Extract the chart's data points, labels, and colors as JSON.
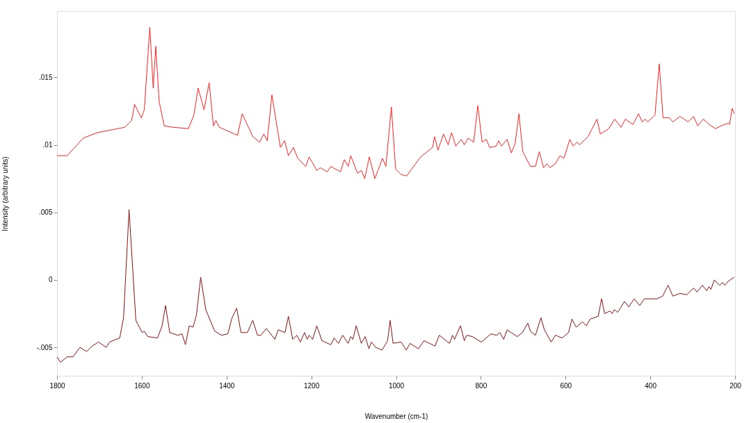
{
  "chart_data": {
    "type": "line",
    "xlabel": "Wavenumber (cm-1)",
    "ylabel": "Intensity (arbitrary units)",
    "xlim": [
      1800,
      200
    ],
    "xticks": [
      1800,
      1600,
      1400,
      1200,
      1000,
      800,
      600,
      400,
      200
    ],
    "ylim": [
      -0.0071,
      0.0199
    ],
    "yticks": [
      {
        "value": -0.005,
        "label": "-.005"
      },
      {
        "value": 0,
        "label": "0"
      },
      {
        "value": 0.005,
        "label": ".005"
      },
      {
        "value": 0.01,
        "label": ".01"
      },
      {
        "value": 0.015,
        "label": ".015"
      }
    ],
    "grid": false,
    "legend": false,
    "marker": "none",
    "line_style": "solid",
    "series": [
      {
        "color": "#ff2020",
        "x": [
          1800,
          1776,
          1738,
          1705,
          1640,
          1624,
          1617,
          1601,
          1594,
          1581,
          1573,
          1567,
          1559,
          1547,
          1526,
          1490,
          1477,
          1467,
          1453,
          1441,
          1431,
          1425,
          1417,
          1374,
          1363,
          1338,
          1322,
          1312,
          1304,
          1293,
          1273,
          1263,
          1254,
          1242,
          1232,
          1213,
          1205,
          1187,
          1179,
          1162,
          1154,
          1131,
          1122,
          1113,
          1107,
          1091,
          1082,
          1074,
          1063,
          1050,
          1032,
          1024,
          1011,
          1001,
          988,
          975,
          942,
          914,
          909,
          901,
          888,
          877,
          869,
          859,
          846,
          839,
          830,
          817,
          807,
          797,
          787,
          779,
          764,
          758,
          751,
          738,
          728,
          719,
          710,
          701,
          683,
          671,
          662,
          652,
          644,
          637,
          624,
          613,
          604,
          590,
          582,
          573,
          567,
          547,
          526,
          518,
          498,
          484,
          469,
          459,
          441,
          428,
          419,
          412,
          406,
          389,
          379,
          370,
          355,
          347,
          330,
          311,
          298,
          288,
          275,
          257,
          246,
          233,
          216,
          213,
          207,
          202
        ],
        "values": [
          0.0092,
          0.0092,
          0.0105,
          0.0109,
          0.0113,
          0.0118,
          0.013,
          0.012,
          0.0126,
          0.0187,
          0.0142,
          0.0173,
          0.0132,
          0.0114,
          0.0113,
          0.0112,
          0.0122,
          0.0142,
          0.0126,
          0.0146,
          0.0114,
          0.0118,
          0.0113,
          0.0107,
          0.0123,
          0.0106,
          0.0102,
          0.0108,
          0.0103,
          0.0137,
          0.0098,
          0.0103,
          0.0092,
          0.0098,
          0.009,
          0.0084,
          0.0091,
          0.0081,
          0.0083,
          0.008,
          0.0084,
          0.008,
          0.0089,
          0.0084,
          0.0092,
          0.0079,
          0.0081,
          0.0075,
          0.0091,
          0.0075,
          0.009,
          0.0084,
          0.0128,
          0.0082,
          0.0078,
          0.0077,
          0.0091,
          0.0098,
          0.0106,
          0.0096,
          0.0108,
          0.01,
          0.0109,
          0.0099,
          0.0104,
          0.01,
          0.0105,
          0.0102,
          0.0129,
          0.0102,
          0.0104,
          0.0098,
          0.0099,
          0.0103,
          0.0099,
          0.0104,
          0.0094,
          0.0101,
          0.0123,
          0.0095,
          0.0084,
          0.0084,
          0.0095,
          0.0083,
          0.0086,
          0.0083,
          0.0086,
          0.0092,
          0.009,
          0.0104,
          0.0099,
          0.0102,
          0.01,
          0.0106,
          0.0119,
          0.0108,
          0.0112,
          0.0119,
          0.0113,
          0.0119,
          0.0115,
          0.0123,
          0.0117,
          0.0119,
          0.0117,
          0.0122,
          0.016,
          0.012,
          0.012,
          0.0117,
          0.0121,
          0.0117,
          0.0121,
          0.0114,
          0.0119,
          0.0114,
          0.0112,
          0.0114,
          0.0116,
          0.0115,
          0.0127,
          0.0123
        ]
      },
      {
        "color": "#8b1010",
        "x": [
          1800,
          1792,
          1776,
          1762,
          1746,
          1730,
          1717,
          1702,
          1684,
          1676,
          1652,
          1643,
          1630,
          1614,
          1599,
          1594,
          1586,
          1563,
          1552,
          1544,
          1534,
          1515,
          1505,
          1497,
          1488,
          1479,
          1471,
          1461,
          1449,
          1428,
          1412,
          1397,
          1387,
          1376,
          1366,
          1351,
          1338,
          1327,
          1319,
          1306,
          1286,
          1278,
          1262,
          1254,
          1244,
          1234,
          1226,
          1216,
          1210,
          1205,
          1197,
          1187,
          1175,
          1154,
          1146,
          1136,
          1126,
          1113,
          1107,
          1102,
          1094,
          1082,
          1073,
          1064,
          1058,
          1048,
          1033,
          1020,
          1014,
          1007,
          988,
          976,
          967,
          947,
          934,
          908,
          898,
          874,
          867,
          862,
          848,
          839,
          833,
          820,
          799,
          776,
          763,
          755,
          746,
          738,
          714,
          702,
          689,
          683,
          671,
          658,
          650,
          634,
          624,
          608,
          593,
          585,
          575,
          560,
          551,
          542,
          523,
          515,
          508,
          495,
          490,
          485,
          477,
          461,
          451,
          438,
          425,
          414,
          404,
          384,
          371,
          358,
          347,
          330,
          314,
          298,
          290,
          277,
          267,
          262,
          257,
          249,
          237,
          229,
          224,
          216,
          202
        ],
        "values": [
          -0.0057,
          -0.0061,
          -0.0057,
          -0.0057,
          -0.005,
          -0.0053,
          -0.0049,
          -0.0046,
          -0.005,
          -0.0046,
          -0.0043,
          -0.0028,
          0.0052,
          -0.003,
          -0.0039,
          -0.0038,
          -0.0042,
          -0.0043,
          -0.0034,
          -0.0019,
          -0.0039,
          -0.0041,
          -0.004,
          -0.0048,
          -0.0034,
          -0.0035,
          -0.0026,
          0.0002,
          -0.0022,
          -0.0038,
          -0.0041,
          -0.004,
          -0.0028,
          -0.0021,
          -0.0039,
          -0.0039,
          -0.003,
          -0.0041,
          -0.0041,
          -0.0036,
          -0.0044,
          -0.0037,
          -0.0039,
          -0.0027,
          -0.0044,
          -0.0041,
          -0.0046,
          -0.0039,
          -0.0044,
          -0.0041,
          -0.0044,
          -0.0034,
          -0.0045,
          -0.0048,
          -0.0043,
          -0.0047,
          -0.0041,
          -0.0047,
          -0.0042,
          -0.0044,
          -0.0034,
          -0.0047,
          -0.0042,
          -0.0051,
          -0.0046,
          -0.005,
          -0.0052,
          -0.0045,
          -0.003,
          -0.0047,
          -0.0046,
          -0.0052,
          -0.0047,
          -0.0051,
          -0.0045,
          -0.0049,
          -0.0041,
          -0.0047,
          -0.0041,
          -0.0044,
          -0.0034,
          -0.0045,
          -0.0041,
          -0.0042,
          -0.0046,
          -0.004,
          -0.0041,
          -0.0039,
          -0.0044,
          -0.0037,
          -0.0042,
          -0.0039,
          -0.0032,
          -0.0038,
          -0.0041,
          -0.0028,
          -0.0037,
          -0.0046,
          -0.0041,
          -0.0043,
          -0.0039,
          -0.0029,
          -0.0035,
          -0.0031,
          -0.0034,
          -0.0029,
          -0.0027,
          -0.0014,
          -0.0025,
          -0.0023,
          -0.0025,
          -0.0022,
          -0.0024,
          -0.0016,
          -0.002,
          -0.0014,
          -0.0019,
          -0.0014,
          -0.0014,
          -0.0014,
          -0.0012,
          -0.0004,
          -0.0012,
          -0.001,
          -0.0011,
          -0.0006,
          -0.0009,
          -0.0004,
          -0.0008,
          -0.0005,
          -0.0007,
          0,
          -0.0004,
          -0.0002,
          -0.0004,
          -0.0001,
          0.0002
        ]
      }
    ]
  }
}
